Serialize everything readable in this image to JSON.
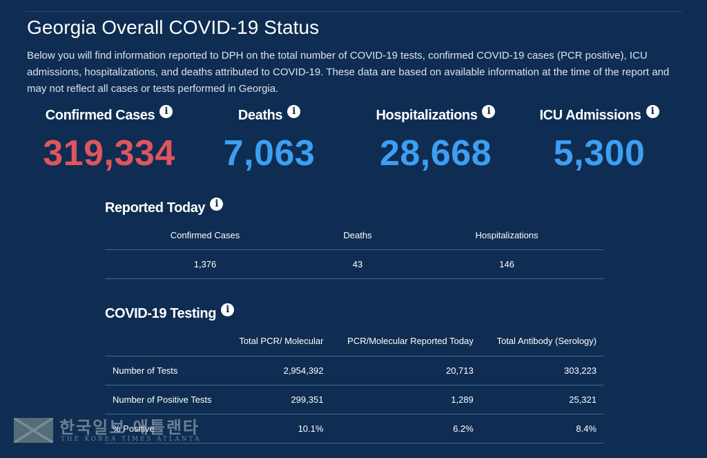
{
  "header": {
    "title": "Georgia Overall COVID-19 Status",
    "intro": "Below you will find information reported to DPH on the total number of COVID-19 tests, confirmed COVID-19 cases (PCR positive), ICU admissions, hospitalizations, and deaths attributed to COVID-19. These data are based on available information at the time of the report and may not reflect all cases or tests performed in Georgia."
  },
  "info_icon_glyph": "i",
  "stats": [
    {
      "label": "Confirmed Cases",
      "value": "319,334",
      "color": "#e0555d"
    },
    {
      "label": "Deaths",
      "value": "7,063",
      "color": "#3d9ff2"
    },
    {
      "label": "Hospitalizations",
      "value": "28,668",
      "color": "#3d9ff2"
    },
    {
      "label": "ICU Admissions",
      "value": "5,300",
      "color": "#3d9ff2"
    }
  ],
  "reported_today": {
    "title": "Reported Today",
    "columns": [
      "Confirmed Cases",
      "Deaths",
      "Hospitalizations"
    ],
    "values": [
      "1,376",
      "43",
      "146"
    ]
  },
  "testing": {
    "title": "COVID-19 Testing",
    "columns": [
      "Total PCR/ Molecular",
      "PCR/Molecular Reported Today",
      "Total Antibody (Serology)"
    ],
    "rows": [
      {
        "label": "Number of Tests",
        "values": [
          "2,954,392",
          "20,713",
          "303,223"
        ]
      },
      {
        "label": "Number of Positive Tests",
        "values": [
          "299,351",
          "1,289",
          "25,321"
        ]
      },
      {
        "label": "% Positive",
        "values": [
          "10.1%",
          "6.2%",
          "8.4%"
        ]
      }
    ]
  },
  "watermark": {
    "korean": "한국일보 애틀랜타",
    "english": "THE KOREA TIMES ATLANTA"
  },
  "colors": {
    "background": "#0f2d52",
    "cases_red": "#e0555d",
    "stat_blue": "#3d9ff2"
  }
}
